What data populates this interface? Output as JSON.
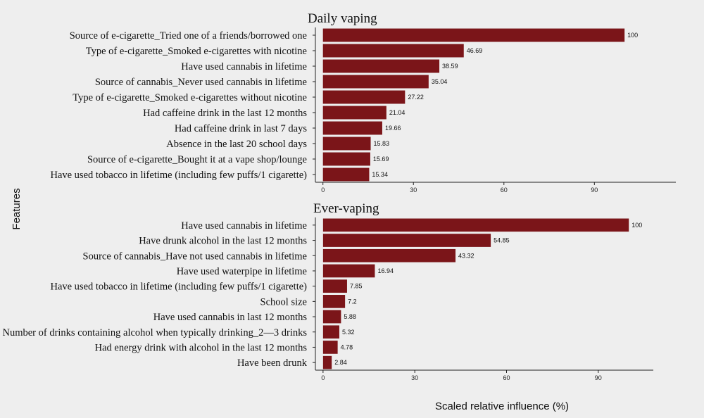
{
  "chart_data": [
    {
      "type": "bar",
      "orientation": "horizontal",
      "title": "Daily vaping",
      "categories": [
        "Source of e-cigarette_Tried one of a friends/borrowed one",
        "Type of e-cigarette_Smoked e-cigarettes with nicotine",
        "Have used cannabis in lifetime",
        "Source of cannabis_Never used cannabis in lifetime",
        "Type of e-cigarette_Smoked e-cigarettes without nicotine",
        "Had caffeine drink in the last 12 months",
        "Had caffeine drink in last 7 days",
        "Absence in the last 20 school days",
        "Source of e-cigarette_Bought it at a vape shop/lounge",
        "Have used tobacco in lifetime (including few puffs/1 cigarette)"
      ],
      "values": [
        100,
        46.69,
        38.59,
        35.04,
        27.22,
        21.04,
        19.66,
        15.83,
        15.69,
        15.34
      ],
      "value_labels": [
        "100",
        "46.69",
        "38.59",
        "35.04",
        "27.22",
        "21.04",
        "19.66",
        "15.83",
        "15.69",
        "15.34"
      ],
      "xticks": [
        0,
        30,
        60,
        90
      ],
      "xlim": [
        -2.5,
        117
      ],
      "bar_color": "#7b1519"
    },
    {
      "type": "bar",
      "orientation": "horizontal",
      "title": "Ever-vaping",
      "categories": [
        "Have used cannabis in lifetime",
        "Have drunk alcohol in the last 12 months",
        "Source of cannabis_Have not used cannabis in lifetime",
        "Have used waterpipe in lifetime",
        "Have used tobacco in lifetime (including few puffs/1 cigarette)",
        "School size",
        "Have used cannabis in last 12 months",
        "Number of drinks containing alcohol when typically drinking_2—3 drinks",
        "Had energy drink with alcohol in the last 12 months",
        "Have been drunk"
      ],
      "values": [
        100,
        54.85,
        43.32,
        16.94,
        7.85,
        7.2,
        5.88,
        5.32,
        4.78,
        2.84
      ],
      "value_labels": [
        "100",
        "54.85",
        "43.32",
        "16.94",
        "7.85",
        "7.2",
        "5.88",
        "5.32",
        "4.78",
        "2.84"
      ],
      "xticks": [
        0,
        30,
        60,
        90
      ],
      "xlim": [
        -2.5,
        108
      ],
      "bar_color": "#7b1519"
    }
  ],
  "ylabel": "Features",
  "xlabel": "Scaled relative influence (%)"
}
